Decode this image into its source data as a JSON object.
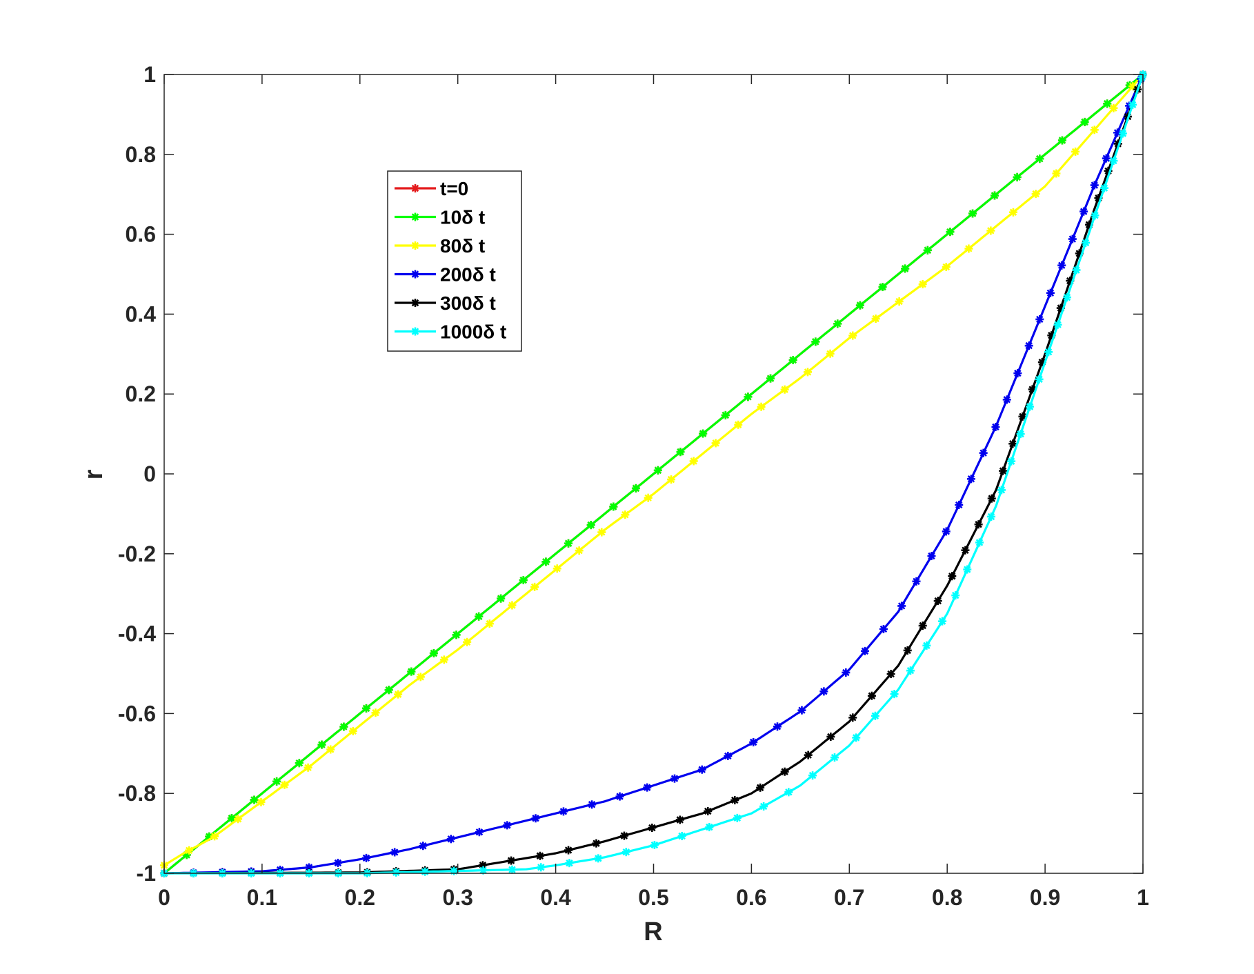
{
  "chart_data": {
    "type": "line",
    "xlabel": "R",
    "ylabel": "r",
    "xlim": [
      0,
      1
    ],
    "ylim": [
      -1,
      1
    ],
    "xticks": [
      "0",
      "0.1",
      "0.2",
      "0.3",
      "0.4",
      "0.5",
      "0.6",
      "0.7",
      "0.8",
      "0.9",
      "1"
    ],
    "yticks": [
      "-1",
      "-0.8",
      "-0.6",
      "-0.4",
      "-0.2",
      "0",
      "0.2",
      "0.4",
      "0.6",
      "0.8",
      "1"
    ],
    "grid": false,
    "legend_position": "upper-left",
    "series": [
      {
        "name": "t=0",
        "color": "#e41a1c",
        "marker": "asterisk",
        "points": [
          [
            0,
            -1
          ],
          [
            0.05,
            -0.9
          ],
          [
            0.1,
            -0.8
          ],
          [
            0.15,
            -0.7
          ],
          [
            0.2,
            -0.6
          ],
          [
            0.25,
            -0.5
          ],
          [
            0.3,
            -0.4
          ],
          [
            0.35,
            -0.3
          ],
          [
            0.4,
            -0.2
          ],
          [
            0.45,
            -0.1
          ],
          [
            0.5,
            0
          ],
          [
            0.55,
            0.1
          ],
          [
            0.6,
            0.2
          ],
          [
            0.65,
            0.3
          ],
          [
            0.7,
            0.4
          ],
          [
            0.75,
            0.5
          ],
          [
            0.8,
            0.6
          ],
          [
            0.85,
            0.7
          ],
          [
            0.9,
            0.8
          ],
          [
            0.95,
            0.9
          ],
          [
            1,
            1
          ]
        ]
      },
      {
        "name": "10δ t",
        "color": "#00ff00",
        "marker": "asterisk",
        "points": [
          [
            0,
            -1
          ],
          [
            0.05,
            -0.9
          ],
          [
            0.1,
            -0.8
          ],
          [
            0.15,
            -0.7
          ],
          [
            0.2,
            -0.6
          ],
          [
            0.25,
            -0.5
          ],
          [
            0.3,
            -0.4
          ],
          [
            0.35,
            -0.3
          ],
          [
            0.4,
            -0.2
          ],
          [
            0.45,
            -0.1
          ],
          [
            0.5,
            0
          ],
          [
            0.55,
            0.1
          ],
          [
            0.6,
            0.2
          ],
          [
            0.65,
            0.3
          ],
          [
            0.7,
            0.4
          ],
          [
            0.75,
            0.5
          ],
          [
            0.8,
            0.6
          ],
          [
            0.85,
            0.7
          ],
          [
            0.9,
            0.8
          ],
          [
            0.95,
            0.9
          ],
          [
            1,
            1
          ]
        ]
      },
      {
        "name": "80δ t",
        "color": "#ffff00",
        "marker": "asterisk",
        "points": [
          [
            0,
            -0.98
          ],
          [
            0.02,
            -0.95
          ],
          [
            0.05,
            -0.91
          ],
          [
            0.1,
            -0.82
          ],
          [
            0.15,
            -0.73
          ],
          [
            0.2,
            -0.63
          ],
          [
            0.25,
            -0.53
          ],
          [
            0.3,
            -0.44
          ],
          [
            0.35,
            -0.34
          ],
          [
            0.4,
            -0.24
          ],
          [
            0.45,
            -0.14
          ],
          [
            0.5,
            -0.05
          ],
          [
            0.55,
            0.05
          ],
          [
            0.6,
            0.15
          ],
          [
            0.65,
            0.24
          ],
          [
            0.7,
            0.34
          ],
          [
            0.75,
            0.43
          ],
          [
            0.8,
            0.52
          ],
          [
            0.85,
            0.62
          ],
          [
            0.9,
            0.72
          ],
          [
            0.95,
            0.86
          ],
          [
            1,
            1
          ]
        ]
      },
      {
        "name": "200δ t",
        "color": "#0000ee",
        "marker": "asterisk",
        "points": [
          [
            0,
            -1
          ],
          [
            0.1,
            -0.995
          ],
          [
            0.15,
            -0.985
          ],
          [
            0.2,
            -0.965
          ],
          [
            0.25,
            -0.94
          ],
          [
            0.3,
            -0.91
          ],
          [
            0.35,
            -0.88
          ],
          [
            0.4,
            -0.85
          ],
          [
            0.45,
            -0.82
          ],
          [
            0.5,
            -0.78
          ],
          [
            0.55,
            -0.74
          ],
          [
            0.6,
            -0.675
          ],
          [
            0.65,
            -0.595
          ],
          [
            0.7,
            -0.49
          ],
          [
            0.75,
            -0.345
          ],
          [
            0.8,
            -0.14
          ],
          [
            0.85,
            0.12
          ],
          [
            0.9,
            0.42
          ],
          [
            0.95,
            0.72
          ],
          [
            1,
            1
          ]
        ]
      },
      {
        "name": "300δ t",
        "color": "#000000",
        "marker": "asterisk",
        "points": [
          [
            0,
            -1
          ],
          [
            0.2,
            -0.998
          ],
          [
            0.3,
            -0.99
          ],
          [
            0.35,
            -0.97
          ],
          [
            0.4,
            -0.95
          ],
          [
            0.45,
            -0.92
          ],
          [
            0.5,
            -0.885
          ],
          [
            0.55,
            -0.85
          ],
          [
            0.6,
            -0.8
          ],
          [
            0.65,
            -0.72
          ],
          [
            0.7,
            -0.62
          ],
          [
            0.75,
            -0.48
          ],
          [
            0.8,
            -0.28
          ],
          [
            0.85,
            -0.04
          ],
          [
            0.9,
            0.3
          ],
          [
            0.95,
            0.66
          ],
          [
            1,
            1
          ]
        ]
      },
      {
        "name": "1000δ t",
        "color": "#00ffff",
        "marker": "asterisk",
        "points": [
          [
            0,
            -1
          ],
          [
            0.2,
            -1
          ],
          [
            0.37,
            -0.99
          ],
          [
            0.4,
            -0.98
          ],
          [
            0.45,
            -0.96
          ],
          [
            0.5,
            -0.93
          ],
          [
            0.55,
            -0.89
          ],
          [
            0.6,
            -0.85
          ],
          [
            0.65,
            -0.78
          ],
          [
            0.7,
            -0.68
          ],
          [
            0.75,
            -0.54
          ],
          [
            0.8,
            -0.35
          ],
          [
            0.85,
            -0.08
          ],
          [
            0.9,
            0.28
          ],
          [
            0.95,
            0.64
          ],
          [
            1,
            1
          ]
        ]
      }
    ]
  }
}
